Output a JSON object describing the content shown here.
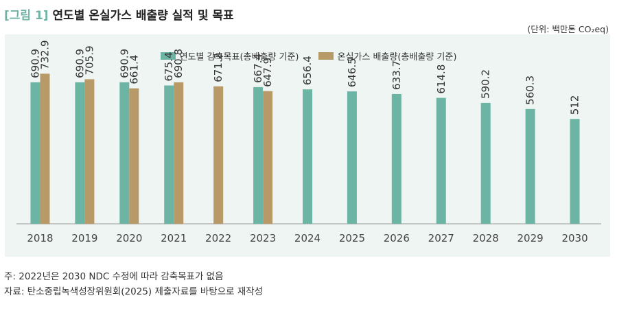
{
  "figure": {
    "number": "[그림 1]",
    "title": "연도별 온실가스 배출량 실적 및 목표",
    "unit": "(단위: 백만톤 CO₂eq)"
  },
  "colors": {
    "target": "#6cb5a4",
    "actual": "#b89a68",
    "panel_bg": "#eef5f2",
    "axis": "#999999"
  },
  "chart_data": {
    "type": "bar",
    "categories": [
      "2018",
      "2019",
      "2020",
      "2021",
      "2022",
      "2023",
      "2024",
      "2025",
      "2026",
      "2027",
      "2028",
      "2029",
      "2030"
    ],
    "series": [
      {
        "name": "연도별 감축목표(총배출량 기준)",
        "values": [
          690.9,
          690.9,
          690.9,
          675.4,
          null,
          667.4,
          656.4,
          646.5,
          633.7,
          614.8,
          590.2,
          560.3,
          512
        ]
      },
      {
        "name": "온실가스 배출량(총배출량 기준)",
        "values": [
          732.9,
          705.9,
          661.4,
          690.8,
          671.2,
          647.9,
          null,
          null,
          null,
          null,
          null,
          null,
          null
        ]
      }
    ],
    "data_labels": [
      [
        "690.9",
        "690.9",
        "690.9",
        "675.4",
        null,
        "667.4",
        "656.4",
        "646.5",
        "633.7",
        "614.8",
        "590.2",
        "560.3",
        "512"
      ],
      [
        "732.9",
        "705.9",
        "661.4",
        "690.8",
        "671.2",
        "647.9",
        null,
        null,
        null,
        null,
        null,
        null,
        null
      ]
    ],
    "ylim": [
      0,
      800
    ],
    "legend_position": "top-center",
    "grid": false
  },
  "notes": [
    "주: 2022년은 2030 NDC 수정에 따라 감축목표가 없음",
    "자료: 탄소중립녹색성장위원회(2025) 제출자료를 바탕으로 재작성"
  ]
}
